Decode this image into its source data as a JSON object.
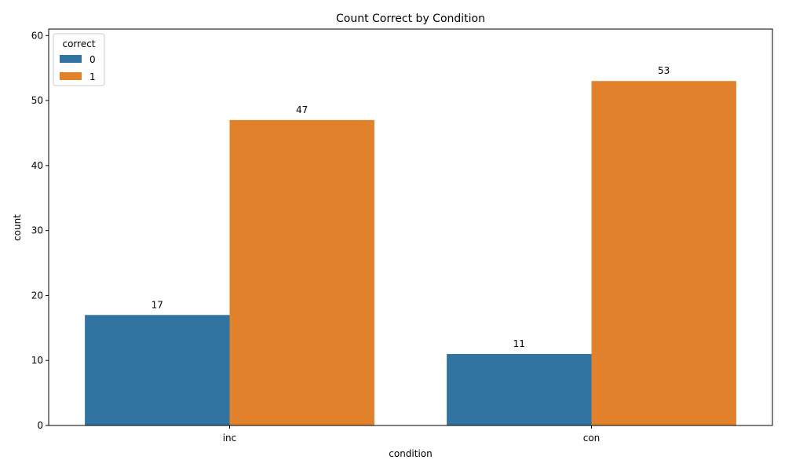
{
  "chart_data": {
    "type": "bar",
    "title": "Count Correct by Condition",
    "xlabel": "condition",
    "ylabel": "count",
    "categories": [
      "inc",
      "con"
    ],
    "series": [
      {
        "name": "0",
        "values": [
          17,
          11
        ],
        "color": "#3274a1"
      },
      {
        "name": "1",
        "values": [
          47,
          53
        ],
        "color": "#e1812c"
      }
    ],
    "ylim": [
      0,
      61
    ],
    "yticks": [
      0,
      10,
      20,
      30,
      40,
      50,
      60
    ],
    "grid": false,
    "legend": {
      "title": "correct",
      "placement": "top-left"
    },
    "data_labels": true
  }
}
